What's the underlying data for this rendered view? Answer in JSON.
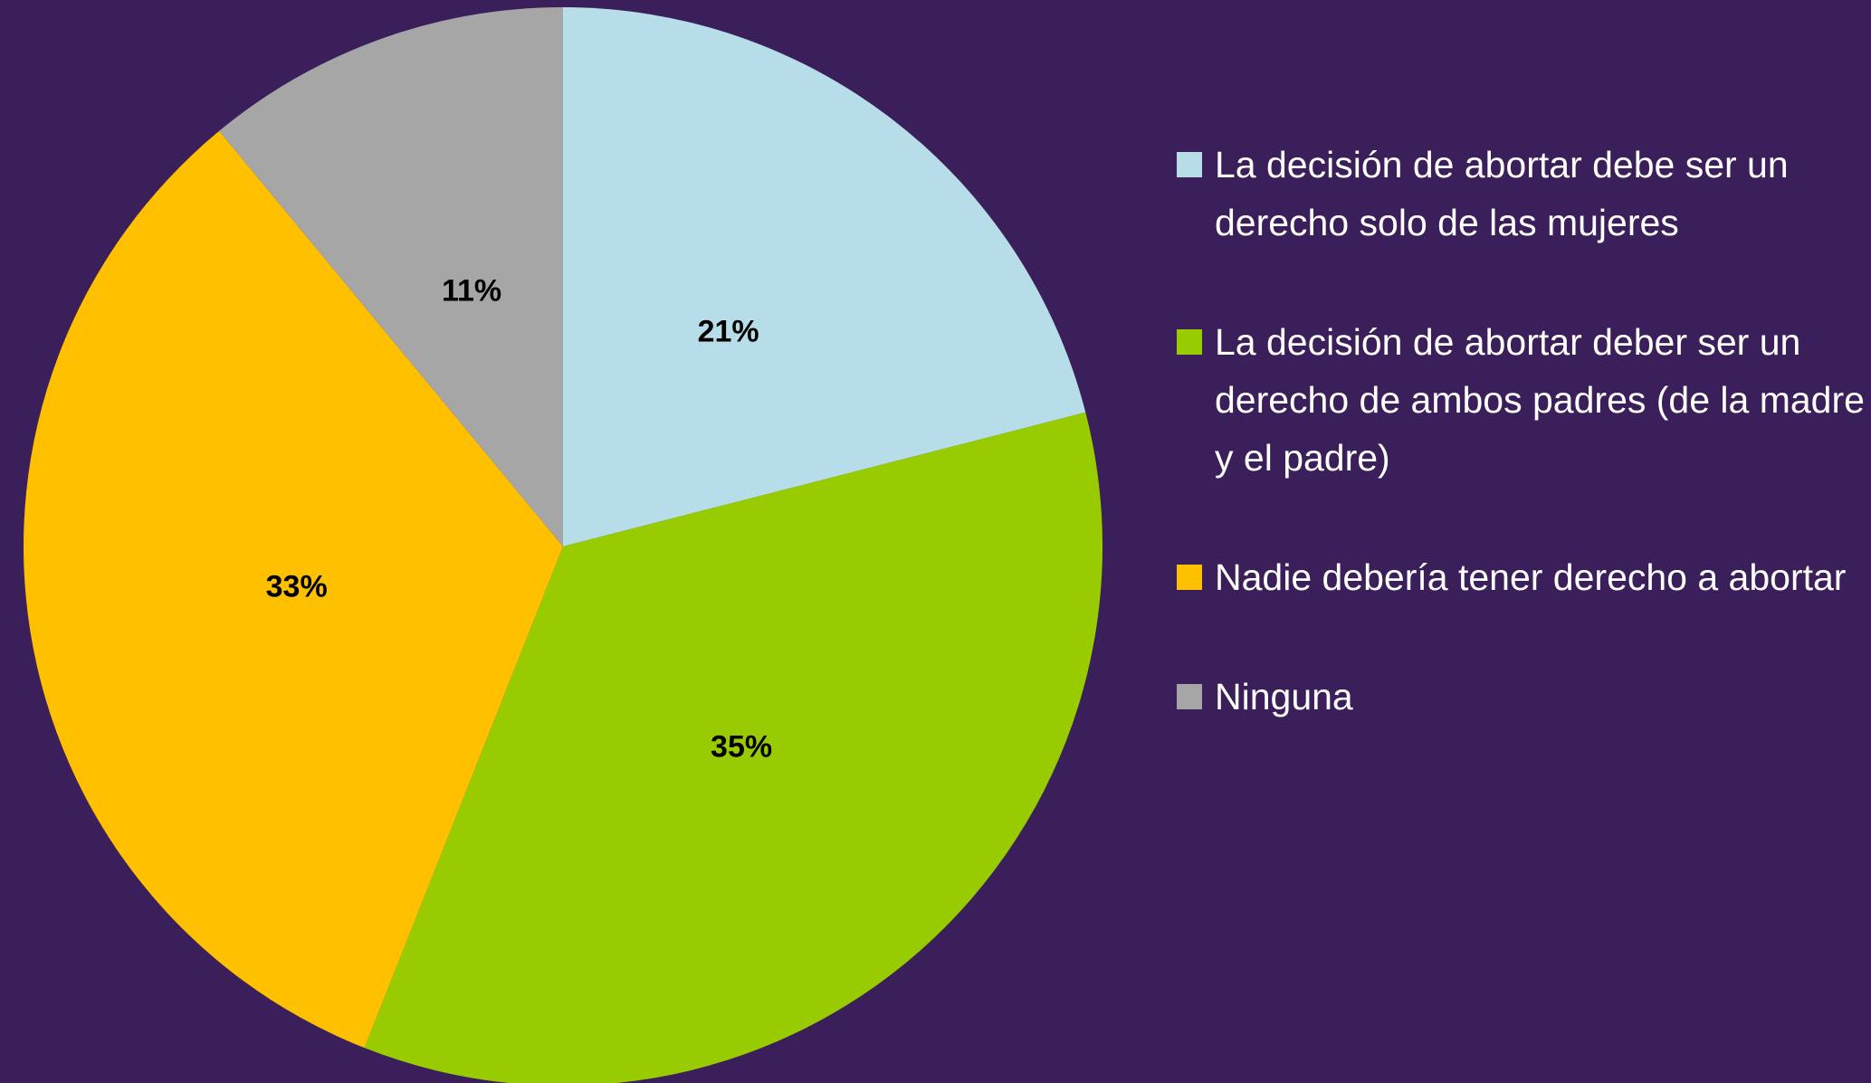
{
  "chart_data": {
    "type": "pie",
    "categories": [
      "La decisión de abortar debe ser un derecho solo de las mujeres",
      "La decisión de abortar deber ser un derecho de ambos padres (de la madre y el padre)",
      "Nadie debería tener derecho a abortar",
      "Ninguna"
    ],
    "values": [
      21,
      35,
      33,
      11
    ],
    "value_labels": [
      "21%",
      "35%",
      "33%",
      "11%"
    ],
    "colors": [
      "#b7dde8",
      "#99cc00",
      "#ffc000",
      "#a6a6a6"
    ],
    "legend": "right"
  }
}
